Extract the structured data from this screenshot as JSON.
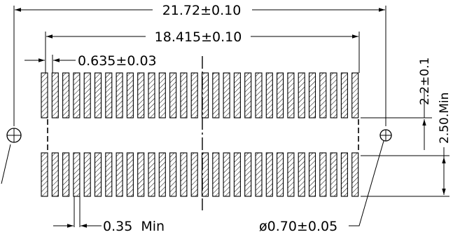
{
  "dimensions": {
    "overall_width": "21.72±0.10",
    "pitch_span": "18.415±0.10",
    "pitch": "0.635±0.03",
    "row_gap": "2.2±0.1",
    "pad_length": "2.50.Min",
    "pad_width": "0.35  Min",
    "hole_diameter": "ø0.70±0.05"
  },
  "pads": {
    "per_row": 30,
    "rows": 2
  }
}
